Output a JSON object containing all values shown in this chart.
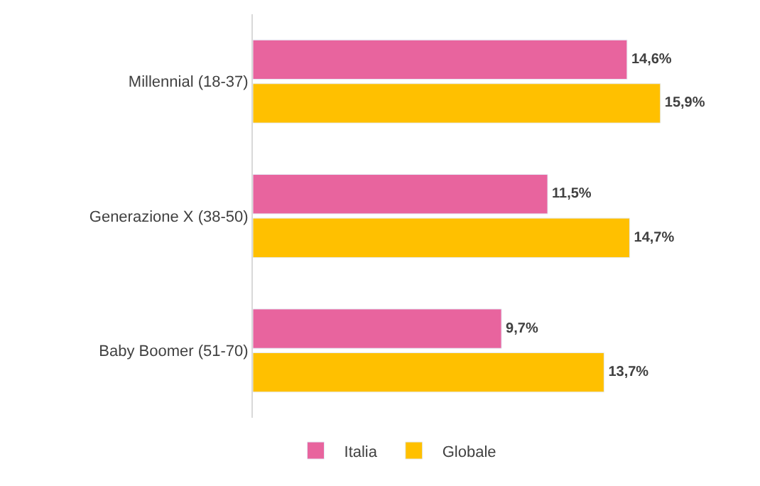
{
  "chart_data": {
    "type": "bar",
    "orientation": "horizontal",
    "categories": [
      "Millennial (18-37)",
      "Generazione X (38-50)",
      "Baby Boomer (51-70)"
    ],
    "series": [
      {
        "name": "Italia",
        "color": "#e8649e",
        "values": [
          14.6,
          11.5,
          9.7
        ],
        "value_labels": [
          "14,6%",
          "11,5%",
          "9,7%"
        ]
      },
      {
        "name": "Globale",
        "color": "#ffc000",
        "values": [
          15.9,
          14.7,
          13.7
        ],
        "value_labels": [
          "15,9%",
          "14,7%",
          "13,7%"
        ]
      }
    ],
    "tick_labels": "y",
    "legend": "bottom"
  }
}
